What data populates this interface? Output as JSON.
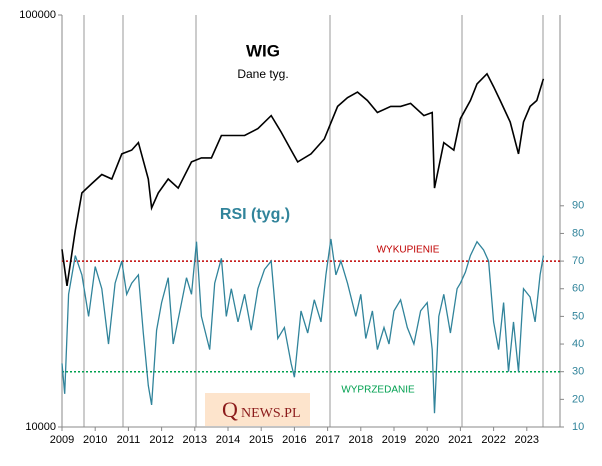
{
  "chart_data": {
    "type": "line",
    "title": "WIG",
    "subtitle": "Dane tyg.",
    "rsi_title": "RSI (tyg.)",
    "ylog": true,
    "xlim": [
      2009,
      2024
    ],
    "xticks": [
      2009,
      2010,
      2011,
      2012,
      2013,
      2014,
      2015,
      2016,
      2017,
      2018,
      2019,
      2020,
      2021,
      2022,
      2023
    ],
    "ylim": [
      10000,
      100000
    ],
    "yticks": [
      10000,
      100000
    ],
    "y2lim": [
      10,
      159
    ],
    "y2ticks": [
      10,
      20,
      30,
      40,
      50,
      60,
      70,
      80,
      90
    ],
    "y2color": "#31849b",
    "levels": [
      {
        "text": "WYKUPIENIE",
        "value": 70,
        "color": "#c00000"
      },
      {
        "text": "WYPRZEDANIE",
        "value": 30,
        "color": "#00a050"
      }
    ],
    "logo": {
      "q": "Q",
      "rest": "NEWS.PL"
    },
    "series": [
      {
        "color": "#000000",
        "x": [
          2009.0,
          2009.15,
          2009.4,
          2009.6,
          2009.9,
          2010.2,
          2010.5,
          2010.8,
          2011.1,
          2011.3,
          2011.6,
          2011.7,
          2011.9,
          2012.2,
          2012.5,
          2012.9,
          2013.2,
          2013.5,
          2013.8,
          2014.2,
          2014.5,
          2014.9,
          2015.3,
          2015.6,
          2015.9,
          2016.1,
          2016.5,
          2016.9,
          2017.3,
          2017.6,
          2017.9,
          2018.2,
          2018.5,
          2018.9,
          2019.2,
          2019.5,
          2019.9,
          2020.15,
          2020.22,
          2020.5,
          2020.8,
          2021.0,
          2021.3,
          2021.5,
          2021.8,
          2022.0,
          2022.2,
          2022.5,
          2022.75,
          2022.9,
          2023.1,
          2023.3,
          2023.5
        ],
        "values": [
          27000,
          22000,
          30000,
          37000,
          39000,
          41000,
          40000,
          46000,
          47000,
          49000,
          40000,
          34000,
          37000,
          40000,
          38000,
          44000,
          45000,
          45000,
          51000,
          51000,
          51000,
          53000,
          57000,
          52000,
          47000,
          44000,
          46000,
          50000,
          60000,
          63000,
          65000,
          62000,
          58000,
          60000,
          60000,
          61000,
          57000,
          58000,
          38000,
          49000,
          47000,
          56000,
          62000,
          68000,
          72000,
          67000,
          62000,
          55000,
          46000,
          55000,
          60000,
          62000,
          70000
        ]
      },
      {
        "color": "#31849b",
        "axis": "y2",
        "x": [
          2009.0,
          2009.08,
          2009.2,
          2009.4,
          2009.6,
          2009.8,
          2010.0,
          2010.2,
          2010.4,
          2010.6,
          2010.8,
          2010.95,
          2011.1,
          2011.3,
          2011.45,
          2011.6,
          2011.7,
          2011.85,
          2012.0,
          2012.2,
          2012.35,
          2012.55,
          2012.75,
          2012.9,
          2013.05,
          2013.2,
          2013.45,
          2013.6,
          2013.8,
          2013.95,
          2014.1,
          2014.3,
          2014.5,
          2014.7,
          2014.9,
          2015.1,
          2015.3,
          2015.5,
          2015.7,
          2015.9,
          2016.0,
          2016.2,
          2016.4,
          2016.6,
          2016.8,
          2016.95,
          2017.1,
          2017.25,
          2017.4,
          2017.6,
          2017.85,
          2018.0,
          2018.15,
          2018.35,
          2018.5,
          2018.7,
          2018.85,
          2019.0,
          2019.2,
          2019.4,
          2019.6,
          2019.8,
          2020.0,
          2020.15,
          2020.22,
          2020.35,
          2020.5,
          2020.7,
          2020.9,
          2021.0,
          2021.15,
          2021.3,
          2021.5,
          2021.7,
          2021.85,
          2022.0,
          2022.15,
          2022.3,
          2022.45,
          2022.6,
          2022.75,
          2022.9,
          2023.1,
          2023.25,
          2023.4,
          2023.5
        ],
        "values": [
          33,
          22,
          58,
          72,
          65,
          50,
          68,
          60,
          40,
          62,
          70,
          58,
          62,
          65,
          44,
          25,
          18,
          45,
          55,
          64,
          40,
          52,
          64,
          58,
          77,
          50,
          38,
          62,
          71,
          50,
          60,
          48,
          58,
          45,
          60,
          67,
          70,
          42,
          46,
          33,
          28,
          52,
          44,
          56,
          48,
          65,
          78,
          65,
          70,
          62,
          50,
          58,
          42,
          52,
          38,
          46,
          40,
          52,
          56,
          46,
          40,
          52,
          55,
          38,
          15,
          50,
          58,
          44,
          60,
          62,
          66,
          72,
          77,
          74,
          70,
          48,
          38,
          55,
          30,
          48,
          30,
          60,
          57,
          48,
          65,
          72
        ]
      }
    ]
  }
}
